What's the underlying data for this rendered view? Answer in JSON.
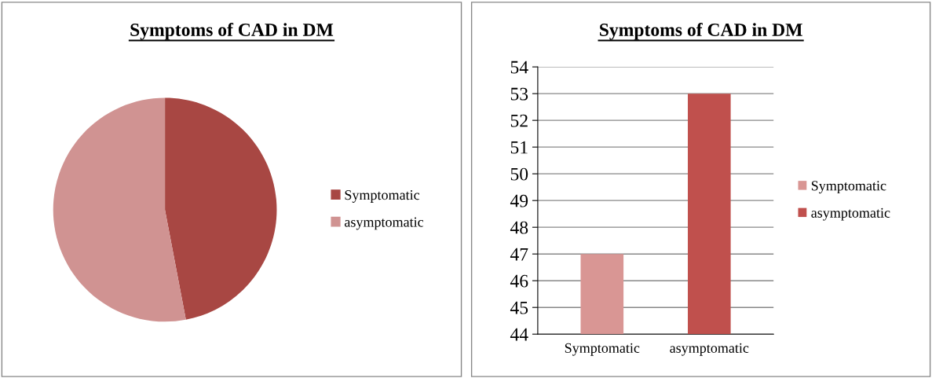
{
  "chart_data": [
    {
      "type": "pie",
      "title": "Symptoms of CAD in DM",
      "categories": [
        "Symptomatic",
        "asymptomatic"
      ],
      "values": [
        47,
        53
      ],
      "colors": [
        "#a84743",
        "#d09392"
      ],
      "legend": "right"
    },
    {
      "type": "bar",
      "title": "Symptoms of CAD in DM",
      "categories": [
        "Symptomatic",
        "asymptomatic"
      ],
      "series": [
        {
          "name": "Symptomatic",
          "color": "#d99694",
          "values": [
            47,
            null
          ]
        },
        {
          "name": "asymptomatic",
          "color": "#c0504d",
          "values": [
            null,
            53
          ]
        }
      ],
      "ylim": [
        44,
        54
      ],
      "yticks": [
        44,
        45,
        46,
        47,
        48,
        49,
        50,
        51,
        52,
        53,
        54
      ],
      "grid": "y",
      "legend": "right"
    }
  ]
}
